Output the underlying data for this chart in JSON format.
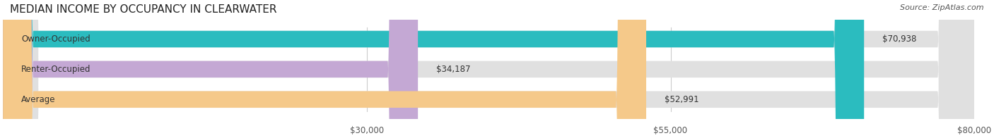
{
  "title": "MEDIAN INCOME BY OCCUPANCY IN CLEARWATER",
  "source": "Source: ZipAtlas.com",
  "categories": [
    "Owner-Occupied",
    "Renter-Occupied",
    "Average"
  ],
  "values": [
    70938,
    34187,
    52991
  ],
  "labels": [
    "$70,938",
    "$34,187",
    "$52,991"
  ],
  "bar_colors": [
    "#2bbcbf",
    "#c4a8d4",
    "#f5c98a"
  ],
  "bar_bg_color": "#e8e8e8",
  "track_bg_color": "#f0f0f0",
  "xlim": [
    0,
    80000
  ],
  "xticks": [
    30000,
    55000,
    80000
  ],
  "xticklabels": [
    "$30,000",
    "$55,000",
    "$80,000"
  ],
  "title_fontsize": 11,
  "label_fontsize": 8.5,
  "source_fontsize": 8,
  "bar_height": 0.55,
  "background_color": "#ffffff"
}
